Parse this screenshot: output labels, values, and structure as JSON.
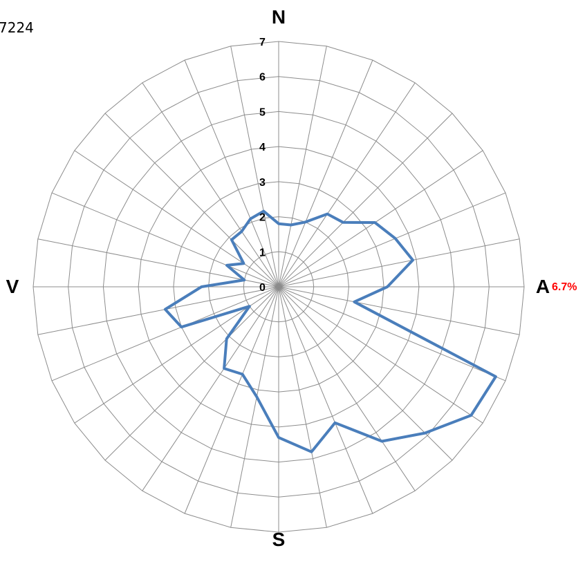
{
  "corner_text": "7224",
  "chart_data": {
    "type": "radar",
    "rmax": 7,
    "directions": {
      "north": "N",
      "east": "A",
      "south": "S",
      "west": "V"
    },
    "radial_ticks": [
      "0",
      "1",
      "2",
      "3",
      "4",
      "5",
      "6",
      "7"
    ],
    "max_label": "6.7%",
    "colors": {
      "series": "#4a7ebb",
      "grid": "#8c8c8c",
      "max_label": "#ff0000"
    },
    "series": [
      {
        "values": [
          1.8,
          1.8,
          2.0,
          2.5,
          2.6,
          3.3,
          3.6,
          3.9,
          3.1,
          2.2,
          6.7,
          6.6,
          5.9,
          5.3,
          4.2,
          4.8,
          4.3,
          3.2,
          2.7,
          2.8,
          2.1,
          1.0,
          3.0,
          3.3,
          2.2,
          1.0,
          1.6,
          1.2,
          1.9,
          1.9,
          2.1,
          2.2
        ]
      }
    ]
  }
}
